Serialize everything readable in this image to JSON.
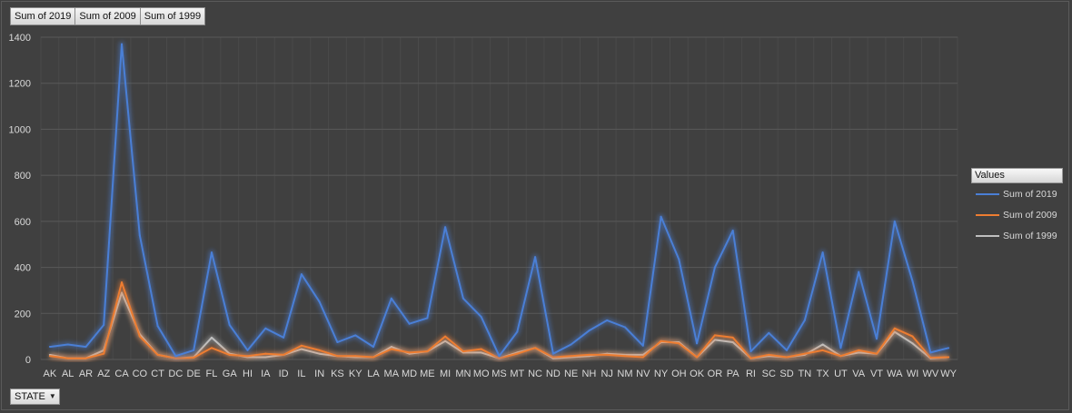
{
  "field_buttons": [
    "Sum of 2019",
    "Sum of 2009",
    "Sum of 1999"
  ],
  "axis_field": {
    "label": "STATE",
    "arrow": "▼"
  },
  "legend": {
    "title": "Values",
    "items": [
      {
        "label": "Sum of 2019",
        "color": "#4a7fd6"
      },
      {
        "label": "Sum of 2009",
        "color": "#ed7d31"
      },
      {
        "label": "Sum of 1999",
        "color": "#bfbfbf"
      }
    ]
  },
  "chart_data": {
    "type": "line",
    "title": "",
    "xlabel": "",
    "ylabel": "",
    "ylim": [
      0,
      1400
    ],
    "yticks": [
      0,
      200,
      400,
      600,
      800,
      1000,
      1200,
      1400
    ],
    "grid": true,
    "legend_position": "right",
    "categories": [
      "AK",
      "AL",
      "AR",
      "AZ",
      "CA",
      "CO",
      "CT",
      "DC",
      "DE",
      "FL",
      "GA",
      "HI",
      "IA",
      "ID",
      "IL",
      "IN",
      "KS",
      "KY",
      "LA",
      "MA",
      "MD",
      "ME",
      "MI",
      "MN",
      "MO",
      "MS",
      "MT",
      "NC",
      "ND",
      "NE",
      "NH",
      "NJ",
      "NM",
      "NV",
      "NY",
      "OH",
      "OK",
      "OR",
      "PA",
      "RI",
      "SC",
      "SD",
      "TN",
      "TX",
      "UT",
      "VA",
      "VT",
      "WA",
      "WI",
      "WV",
      "WY"
    ],
    "series": [
      {
        "name": "Sum of 2019",
        "color": "#4a7fd6",
        "values": [
          55,
          65,
          55,
          150,
          1370,
          540,
          145,
          15,
          40,
          465,
          150,
          40,
          135,
          95,
          370,
          250,
          75,
          105,
          55,
          265,
          155,
          180,
          575,
          265,
          185,
          15,
          120,
          445,
          25,
          65,
          125,
          170,
          140,
          60,
          620,
          435,
          70,
          400,
          560,
          35,
          115,
          40,
          170,
          465,
          50,
          380,
          90,
          600,
          340,
          30,
          50
        ]
      },
      {
        "name": "Sum of 2009",
        "color": "#ed7d31",
        "values": [
          15,
          5,
          5,
          25,
          335,
          100,
          20,
          5,
          8,
          50,
          20,
          15,
          25,
          20,
          60,
          40,
          15,
          15,
          10,
          45,
          30,
          35,
          100,
          35,
          45,
          5,
          25,
          50,
          10,
          15,
          20,
          20,
          15,
          10,
          80,
          70,
          10,
          105,
          95,
          5,
          20,
          10,
          25,
          40,
          15,
          40,
          25,
          135,
          100,
          8,
          10
        ]
      },
      {
        "name": "Sum of 1999",
        "color": "#bfbfbf",
        "values": [
          20,
          5,
          5,
          40,
          290,
          110,
          20,
          5,
          10,
          95,
          25,
          10,
          10,
          20,
          45,
          25,
          15,
          10,
          10,
          55,
          25,
          35,
          80,
          30,
          30,
          5,
          30,
          50,
          5,
          10,
          15,
          25,
          20,
          20,
          75,
          75,
          10,
          85,
          75,
          5,
          15,
          10,
          20,
          65,
          15,
          30,
          25,
          120,
          70,
          5,
          10
        ]
      }
    ]
  }
}
